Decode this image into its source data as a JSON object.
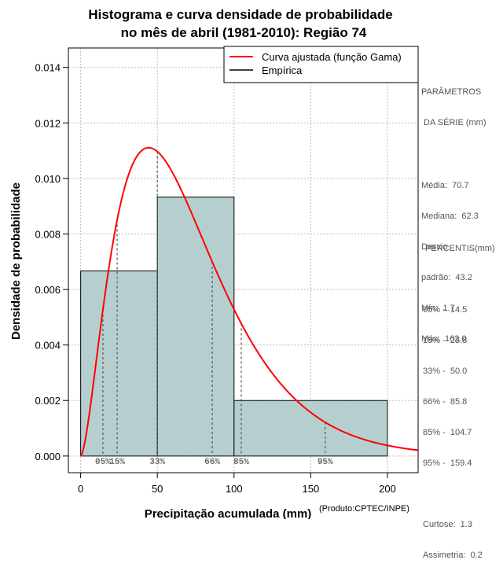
{
  "chart_data": {
    "type": "histogram",
    "title_lines": [
      "Histograma e curva densidade de probabilidade",
      "no mês de abril (1981-2010): Região 74"
    ],
    "xlabel": "Precipitação acumulada (mm)",
    "ylabel": "Densidade de probabilidade",
    "credit": "(Produto:CPTEC/INPE)",
    "xlim": [
      -8,
      220
    ],
    "ylim": [
      -0.0006,
      0.0147
    ],
    "x_ticks": [
      0,
      50,
      100,
      150,
      200
    ],
    "x_tick_labels": [
      "0",
      "50",
      "100",
      "150",
      "200"
    ],
    "y_ticks": [
      0,
      0.002,
      0.004,
      0.006,
      0.008,
      0.01,
      0.012,
      0.014
    ],
    "y_tick_labels": [
      "0.000",
      "0.002",
      "0.004",
      "0.006",
      "0.008",
      "0.010",
      "0.012",
      "0.014"
    ],
    "grid": true,
    "bins": [
      {
        "from": 0,
        "to": 50,
        "density": 0.00667
      },
      {
        "from": 50,
        "to": 100,
        "density": 0.00933
      },
      {
        "from": 100,
        "to": 200,
        "density": 0.002
      }
    ],
    "gamma_fit": {
      "shape": 2.68,
      "scale": 26.38,
      "x_max": 220
    },
    "percentile_marks": [
      {
        "label": "05%",
        "value": 14.5
      },
      {
        "label": "15%",
        "value": 23.8
      },
      {
        "label": "33%",
        "value": 50.0
      },
      {
        "label": "66%",
        "value": 85.8
      },
      {
        "label": "85%",
        "value": 104.7
      },
      {
        "label": "95%",
        "value": 159.4
      }
    ],
    "legend": {
      "position": "top-right",
      "entries": [
        {
          "label": "Curva ajustada (função Gama)",
          "color": "#ff0000"
        },
        {
          "label": "Empírica",
          "color": "#000000"
        }
      ]
    },
    "colors": {
      "bar_fill": "#b5cfcf",
      "curve": "#ff0000",
      "grid": "#bdbdbd"
    }
  },
  "side_panel": {
    "params_title_1": "PARÂMETROS",
    "params_title_2": " DA SÉRIE (mm)",
    "media": "Média:  70.7",
    "mediana": "Mediana:  62.3",
    "desvio_1": "Desvio",
    "desvio_2": "padrão:  43.2",
    "min": "Mín:  1.7",
    "max": "Máx:  162.0",
    "percentis_title": " PERCENTIS(mm)",
    "p05": "05% -  14.5",
    "p15": "15% -  23.8",
    "p33": "33% -  50.0",
    "p66": "66% -  85.8",
    "p85": "85% -  104.7",
    "p95": "95% -  159.4",
    "curtose": "Curtose:  1.3",
    "assimetria": "Assimetria:  0.2"
  }
}
